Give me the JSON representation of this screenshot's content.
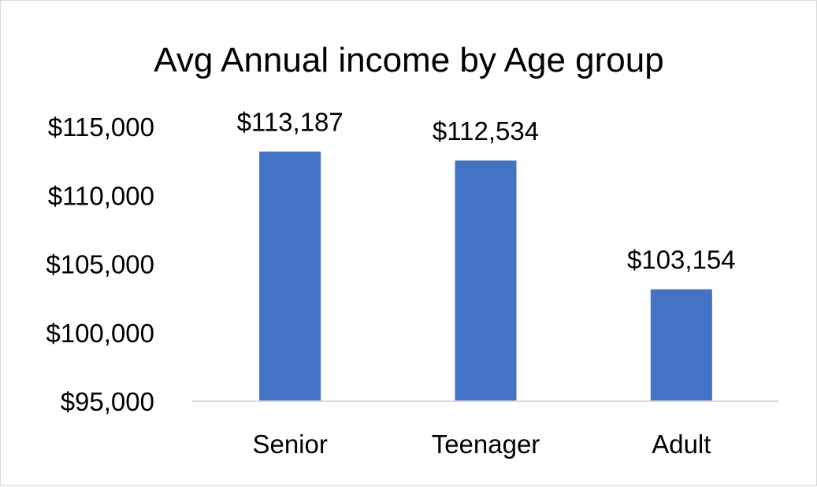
{
  "chart_data": {
    "type": "bar",
    "title": "Avg Annual income by Age group",
    "xlabel": "",
    "ylabel": "",
    "categories": [
      "Senior",
      "Teenager",
      "Adult"
    ],
    "values": [
      113187,
      112534,
      103154
    ],
    "data_labels": [
      "$113,187",
      "$112,534",
      "$103,154"
    ],
    "ylim": [
      95000,
      115000
    ],
    "yticks": [
      95000,
      100000,
      105000,
      110000,
      115000
    ],
    "ytick_labels": [
      "$95,000",
      "$100,000",
      "$105,000",
      "$110,000",
      "$115,000"
    ],
    "grid": false,
    "legend": "none",
    "bar_color": "#4472c4"
  }
}
